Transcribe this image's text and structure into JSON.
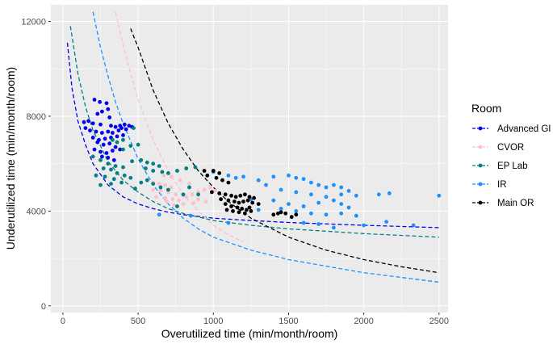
{
  "chart_data": {
    "type": "scatter",
    "xlabel": "Overutilized time (min/month/room)",
    "ylabel": "Underutilized time (min/month/room)",
    "xlim": [
      -80,
      2560
    ],
    "ylim": [
      -280,
      12700
    ],
    "xticks": [
      0,
      500,
      1000,
      1500,
      2000,
      2500
    ],
    "yticks": [
      0,
      4000,
      8000,
      12000
    ],
    "grid": true,
    "legend_title": "Room",
    "legend_position": "right",
    "series": [
      {
        "name": "Advanced GI",
        "color": "#0000ee",
        "points": [
          [
            210,
            8700
          ],
          [
            245,
            8600
          ],
          [
            290,
            8550
          ],
          [
            260,
            8200
          ],
          [
            230,
            8100
          ],
          [
            300,
            8300
          ],
          [
            310,
            7950
          ],
          [
            170,
            7800
          ],
          [
            140,
            7750
          ],
          [
            200,
            7700
          ],
          [
            250,
            7650
          ],
          [
            320,
            7600
          ],
          [
            350,
            7550
          ],
          [
            380,
            7600
          ],
          [
            410,
            7650
          ],
          [
            440,
            7600
          ],
          [
            460,
            7550
          ],
          [
            150,
            7500
          ],
          [
            180,
            7400
          ],
          [
            220,
            7350
          ],
          [
            260,
            7300
          ],
          [
            300,
            7350
          ],
          [
            330,
            7300
          ],
          [
            370,
            7400
          ],
          [
            390,
            7500
          ],
          [
            420,
            7450
          ],
          [
            200,
            7100
          ],
          [
            240,
            7000
          ],
          [
            280,
            7050
          ],
          [
            320,
            7100
          ],
          [
            360,
            7150
          ],
          [
            400,
            7200
          ],
          [
            230,
            6900
          ],
          [
            270,
            6800
          ],
          [
            310,
            6850
          ],
          [
            350,
            6700
          ],
          [
            210,
            6600
          ],
          [
            250,
            6500
          ],
          [
            290,
            6450
          ],
          [
            330,
            6550
          ],
          [
            380,
            6600
          ],
          [
            300,
            6250
          ],
          [
            340,
            6150
          ],
          [
            260,
            6300
          ]
        ],
        "curve": [
          [
            30,
            11100
          ],
          [
            60,
            9200
          ],
          [
            100,
            7800
          ],
          [
            150,
            6800
          ],
          [
            200,
            6000
          ],
          [
            300,
            5100
          ],
          [
            400,
            4600
          ],
          [
            500,
            4300
          ],
          [
            600,
            4100
          ],
          [
            700,
            3950
          ],
          [
            800,
            3850
          ],
          [
            1000,
            3700
          ],
          [
            1250,
            3600
          ],
          [
            1500,
            3520
          ],
          [
            2000,
            3400
          ],
          [
            2500,
            3300
          ]
        ]
      },
      {
        "name": "CVOR",
        "color": "#ffc0cb",
        "points": [
          [
            560,
            5300
          ],
          [
            600,
            5200
          ],
          [
            640,
            5150
          ],
          [
            680,
            5100
          ],
          [
            720,
            5000
          ],
          [
            600,
            4900
          ],
          [
            650,
            4850
          ],
          [
            700,
            4800
          ],
          [
            750,
            4700
          ],
          [
            800,
            4650
          ],
          [
            620,
            4600
          ],
          [
            680,
            4550
          ],
          [
            730,
            4500
          ],
          [
            770,
            4450
          ],
          [
            820,
            4600
          ],
          [
            860,
            4700
          ],
          [
            900,
            4800
          ],
          [
            940,
            4900
          ],
          [
            980,
            5000
          ],
          [
            1010,
            4850
          ],
          [
            840,
            5150
          ],
          [
            780,
            5300
          ],
          [
            720,
            5450
          ],
          [
            670,
            5500
          ],
          [
            900,
            4500
          ],
          [
            950,
            4400
          ],
          [
            870,
            4350
          ],
          [
            800,
            4300
          ],
          [
            740,
            4250
          ],
          [
            690,
            4400
          ]
        ],
        "curve": [
          [
            350,
            12400
          ],
          [
            400,
            11000
          ],
          [
            450,
            9800
          ],
          [
            500,
            8700
          ],
          [
            600,
            7000
          ],
          [
            700,
            5700
          ],
          [
            800,
            4700
          ],
          [
            900,
            4000
          ],
          [
            1000,
            3400
          ],
          [
            1100,
            3000
          ],
          [
            1200,
            2700
          ]
        ]
      },
      {
        "name": "EP Lab",
        "color": "#008080",
        "points": [
          [
            470,
            7500
          ],
          [
            400,
            7000
          ],
          [
            330,
            7000
          ],
          [
            360,
            6900
          ],
          [
            400,
            6600
          ],
          [
            450,
            6750
          ],
          [
            500,
            6800
          ],
          [
            460,
            6100
          ],
          [
            520,
            6150
          ],
          [
            560,
            6050
          ],
          [
            600,
            6000
          ],
          [
            640,
            5900
          ],
          [
            550,
            5800
          ],
          [
            600,
            5700
          ],
          [
            660,
            5650
          ],
          [
            700,
            5600
          ],
          [
            760,
            5700
          ],
          [
            820,
            5800
          ],
          [
            880,
            5850
          ],
          [
            200,
            6300
          ],
          [
            250,
            6150
          ],
          [
            300,
            6000
          ],
          [
            350,
            5900
          ],
          [
            400,
            5850
          ],
          [
            270,
            5800
          ],
          [
            320,
            5750
          ],
          [
            360,
            5600
          ],
          [
            410,
            5500
          ],
          [
            450,
            5400
          ],
          [
            220,
            5500
          ],
          [
            280,
            5450
          ],
          [
            340,
            5350
          ],
          [
            390,
            5200
          ],
          [
            250,
            5100
          ],
          [
            320,
            5150
          ],
          [
            560,
            5300
          ],
          [
            520,
            5200
          ],
          [
            600,
            5150
          ],
          [
            650,
            5000
          ],
          [
            700,
            4900
          ],
          [
            480,
            4950
          ],
          [
            760,
            4200
          ],
          [
            800,
            4700
          ],
          [
            840,
            5000
          ],
          [
            900,
            4700
          ]
        ],
        "curve": [
          [
            50,
            11800
          ],
          [
            100,
            9800
          ],
          [
            150,
            8400
          ],
          [
            200,
            7400
          ],
          [
            300,
            6100
          ],
          [
            400,
            5300
          ],
          [
            500,
            4800
          ],
          [
            600,
            4400
          ],
          [
            700,
            4100
          ],
          [
            800,
            3900
          ],
          [
            1000,
            3600
          ],
          [
            1250,
            3400
          ],
          [
            1500,
            3250
          ],
          [
            2000,
            3050
          ],
          [
            2500,
            2900
          ]
        ]
      },
      {
        "name": "IR",
        "color": "#1e90ff",
        "points": [
          [
            1000,
            5650
          ],
          [
            1100,
            5500
          ],
          [
            1150,
            5400
          ],
          [
            1200,
            5450
          ],
          [
            1300,
            5300
          ],
          [
            1400,
            5450
          ],
          [
            1500,
            5500
          ],
          [
            1550,
            5400
          ],
          [
            1600,
            5350
          ],
          [
            1650,
            5200
          ],
          [
            1700,
            5100
          ],
          [
            1750,
            5000
          ],
          [
            1800,
            5100
          ],
          [
            1850,
            5000
          ],
          [
            1900,
            4850
          ],
          [
            1350,
            5100
          ],
          [
            1450,
            4900
          ],
          [
            1550,
            4800
          ],
          [
            1650,
            4700
          ],
          [
            1750,
            4600
          ],
          [
            1850,
            4700
          ],
          [
            1950,
            4650
          ],
          [
            2100,
            4700
          ],
          [
            2170,
            4750
          ],
          [
            2500,
            4650
          ],
          [
            1250,
            4500
          ],
          [
            1400,
            4450
          ],
          [
            1500,
            4300
          ],
          [
            1600,
            4200
          ],
          [
            1700,
            4350
          ],
          [
            1800,
            4450
          ],
          [
            1850,
            4300
          ],
          [
            1900,
            4150
          ],
          [
            1300,
            4050
          ],
          [
            1450,
            4100
          ],
          [
            1550,
            4000
          ],
          [
            1650,
            3900
          ],
          [
            1750,
            3850
          ],
          [
            1850,
            3900
          ],
          [
            1950,
            3800
          ],
          [
            1600,
            3500
          ],
          [
            1700,
            3450
          ],
          [
            1800,
            3300
          ],
          [
            2000,
            3400
          ],
          [
            2150,
            3550
          ],
          [
            2330,
            3400
          ],
          [
            1100,
            3500
          ],
          [
            850,
            3800
          ],
          [
            640,
            3850
          ]
        ],
        "curve": [
          [
            200,
            12400
          ],
          [
            250,
            10900
          ],
          [
            300,
            9700
          ],
          [
            350,
            8600
          ],
          [
            400,
            7700
          ],
          [
            500,
            6200
          ],
          [
            600,
            5100
          ],
          [
            700,
            4300
          ],
          [
            800,
            3700
          ],
          [
            900,
            3250
          ],
          [
            1000,
            2900
          ],
          [
            1250,
            2350
          ],
          [
            1500,
            1950
          ],
          [
            2000,
            1400
          ],
          [
            2500,
            1000
          ]
        ]
      },
      {
        "name": "Main OR",
        "color": "#000000",
        "points": [
          [
            940,
            5700
          ],
          [
            1000,
            5700
          ],
          [
            1040,
            5600
          ],
          [
            960,
            5500
          ],
          [
            1020,
            5400
          ],
          [
            1060,
            5300
          ],
          [
            1100,
            5200
          ],
          [
            990,
            4800
          ],
          [
            1040,
            4750
          ],
          [
            1080,
            4700
          ],
          [
            1120,
            4650
          ],
          [
            1150,
            4600
          ],
          [
            1180,
            4650
          ],
          [
            1210,
            4700
          ],
          [
            1240,
            4600
          ],
          [
            1270,
            4550
          ],
          [
            1050,
            4500
          ],
          [
            1100,
            4450
          ],
          [
            1140,
            4400
          ],
          [
            1170,
            4350
          ],
          [
            1200,
            4400
          ],
          [
            1230,
            4450
          ],
          [
            1260,
            4350
          ],
          [
            1300,
            4300
          ],
          [
            1080,
            4300
          ],
          [
            1120,
            4200
          ],
          [
            1160,
            4150
          ],
          [
            1190,
            4100
          ],
          [
            1220,
            4050
          ],
          [
            1250,
            4000
          ],
          [
            1090,
            4050
          ],
          [
            1130,
            4000
          ],
          [
            1170,
            3950
          ],
          [
            1210,
            3900
          ],
          [
            1240,
            4150
          ],
          [
            1400,
            3850
          ],
          [
            1450,
            3950
          ],
          [
            1480,
            3900
          ],
          [
            1520,
            3750
          ],
          [
            1550,
            3850
          ],
          [
            1430,
            3900
          ]
        ],
        "curve": [
          [
            450,
            11700
          ],
          [
            500,
            10900
          ],
          [
            550,
            10000
          ],
          [
            600,
            9100
          ],
          [
            700,
            7700
          ],
          [
            800,
            6600
          ],
          [
            900,
            5700
          ],
          [
            1000,
            5000
          ],
          [
            1100,
            4400
          ],
          [
            1250,
            3700
          ],
          [
            1500,
            2900
          ],
          [
            1750,
            2350
          ],
          [
            2000,
            1950
          ],
          [
            2250,
            1650
          ],
          [
            2500,
            1400
          ]
        ]
      }
    ]
  }
}
